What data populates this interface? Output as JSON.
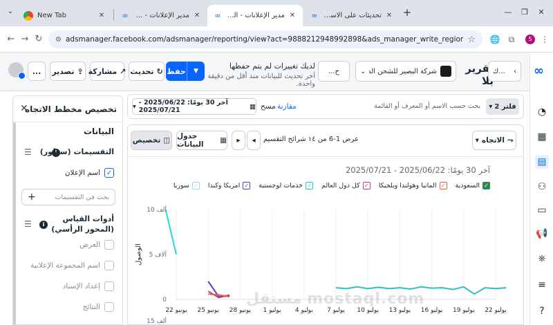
{
  "browser": {
    "tabs": [
      {
        "title": "New Tab",
        "icon": "chrome-icon"
      },
      {
        "title": "مدير الإعلانات - إدارة الإعلانات",
        "icon": "meta-icon"
      },
      {
        "title": "مدير الإعلانات - التقارير - عرض",
        "icon": "meta-icon",
        "active": true
      },
      {
        "title": "تحديثات على الاستهداف التفصيلي",
        "icon": "meta-icon"
      }
    ],
    "new_tab_symbol": "+",
    "url": "adsmanager.facebook.com/adsmanager/reporting/view?act=9888212948992898&ads_manager_write_regions=true&business_id=1301469818711548&eve...",
    "profile_initial": "S"
  },
  "header": {
    "report_title": "تقرير بلا",
    "title_nav_label": "ك...",
    "account_name": "شركة البصير للشحن الدو...",
    "account_short_btn": "...ح",
    "unsaved_line1": "لديك تغييرات لم يتم حفظها",
    "unsaved_line2": "آخر تحديث للبيانات منذ أقل من دقيقة واحدة.",
    "save_label": "حفظ",
    "refresh_label": "تحديث",
    "share_label": "مشاركة",
    "export_label": "تصدير",
    "more_label": "..."
  },
  "filterbar": {
    "filter_label": "2 فلتر",
    "search_placeholder": "بحث حسب الاسم أو المعرف أو القائمة",
    "compare_label": "مقارنة",
    "clear_label": "مسح",
    "date_range": "آخر 30 يومًا: 2025/06/22 - 2025/07/21"
  },
  "panel": {
    "title": "تخصيص مخطط الاتجاه",
    "data_heading": "البيانات",
    "breakdowns_label": "التقسيمات (سطور)",
    "breakdown_item": "اسم الإعلان",
    "search_breakdowns_placeholder": "بحث في التقسيمات",
    "metrics_label": "أدوات القياس (المحور الرأسي)",
    "metric_items": [
      "العرض",
      "اسم المجموعة الإعلانية",
      "إعداد الإسناد",
      "النتائج"
    ]
  },
  "chart_toolbar": {
    "trend_label": "الاتجاه",
    "pager_text": "عرض 1-6 من ١٤ شرائح التقسيم",
    "data_table_label": "جدول البيانات",
    "customize_label": "تخصيص"
  },
  "chart_data": {
    "type": "line",
    "title": "آخر 30 يومًا: 2025/06/22 - 2025/07/21",
    "ylabel": "الوصول",
    "yticks": [
      "10 ألف",
      "5 آلاف",
      "0"
    ],
    "second_chart_ytick": "15 ألف",
    "ylim": [
      0,
      10000
    ],
    "x": [
      "يونيو 22",
      "يونيو 25",
      "يونيو 28",
      "يوليو 1",
      "يوليو 4",
      "يوليو 7",
      "يوليو 10",
      "يوليو 13",
      "يوليو 16",
      "يوليو 19",
      "يوليو 22"
    ],
    "series": [
      {
        "name": "سوريا",
        "color": "#2ad6d6",
        "points": [
          [
            21,
            10000
          ],
          [
            22,
            5000
          ]
        ]
      },
      {
        "name": "امريكا وكندا",
        "color": "#5b3bd4",
        "points": [
          [
            25,
            2000
          ],
          [
            26,
            300
          ],
          [
            27,
            400
          ]
        ]
      },
      {
        "name": "خدمات لوجستية",
        "color": "#2bbfc0",
        "points": [
          [
            37,
            1300
          ],
          [
            38,
            1200
          ],
          [
            39,
            1400
          ],
          [
            40,
            1200
          ],
          [
            41,
            1350
          ],
          [
            42,
            1200
          ],
          [
            43,
            1300
          ],
          [
            44,
            1150
          ],
          [
            45,
            1400
          ],
          [
            46,
            1250
          ],
          [
            47,
            1300
          ],
          [
            48,
            1100
          ],
          [
            49,
            1400
          ],
          [
            50,
            600
          ],
          [
            51,
            1300
          ],
          [
            52,
            1200
          ],
          [
            53,
            1300
          ]
        ]
      },
      {
        "name": "كل دول العالم",
        "color": "#c0379b",
        "points": [
          [
            25,
            900
          ],
          [
            26,
            200
          ],
          [
            27,
            500
          ]
        ]
      },
      {
        "name": "المانيا وهولندا وبلجيكا",
        "color": "#e0652f",
        "points": [
          [
            25,
            600
          ],
          [
            26,
            500
          ],
          [
            27,
            300
          ]
        ]
      },
      {
        "name": "السعودية",
        "color": "#34884c",
        "points": []
      }
    ],
    "legend_position": "top",
    "grid": true
  },
  "watermark": "مستقل mostaql.com",
  "colors": {
    "accent": "#0866ff",
    "text": "#1c2b33"
  }
}
